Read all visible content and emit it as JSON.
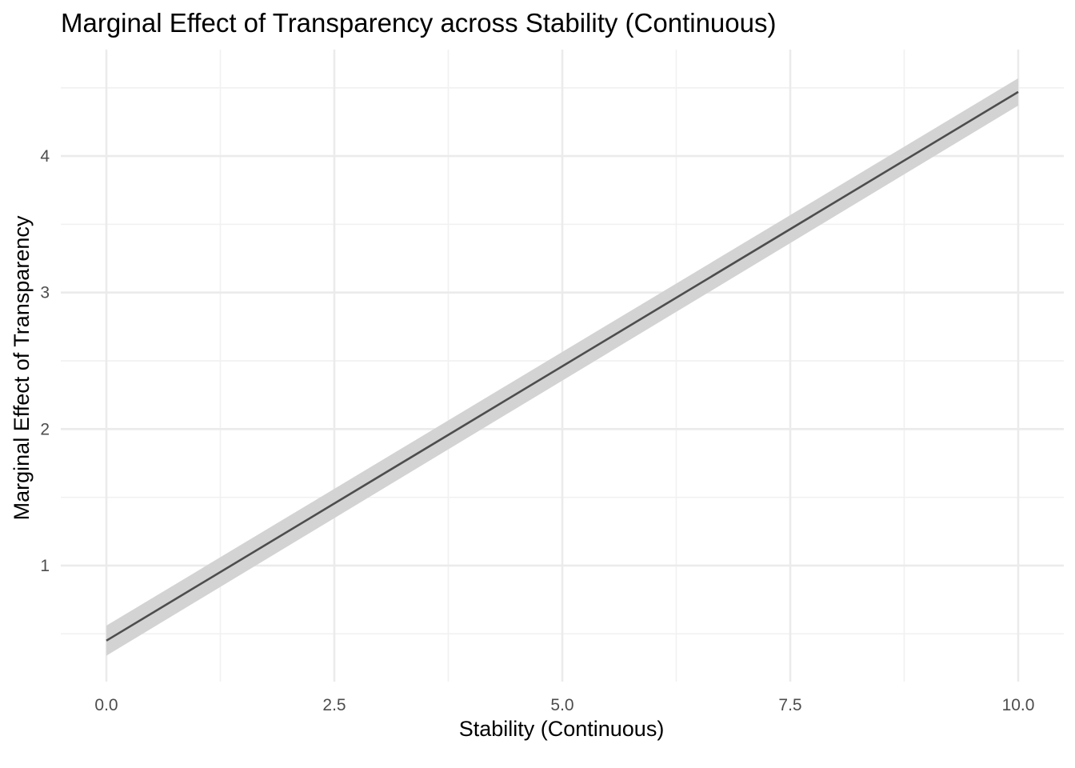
{
  "chart_data": {
    "type": "line",
    "title": "Marginal Effect of Transparency across Stability (Continuous)",
    "xlabel": "Stability (Continuous)",
    "ylabel": "Marginal Effect of Transparency",
    "xlim": [
      -0.5,
      10.5
    ],
    "ylim": [
      0.15,
      4.78
    ],
    "x_ticks": [
      0.0,
      2.5,
      5.0,
      7.5,
      10.0
    ],
    "x_tick_labels": [
      "0.0",
      "2.5",
      "5.0",
      "7.5",
      "10.0"
    ],
    "x_minor_ticks": [
      1.25,
      3.75,
      6.25,
      8.75
    ],
    "y_ticks": [
      1,
      2,
      3,
      4
    ],
    "y_tick_labels": [
      "1",
      "2",
      "3",
      "4"
    ],
    "y_minor_ticks": [
      0.5,
      1.5,
      2.5,
      3.5,
      4.5
    ],
    "grid": true,
    "legend": "none",
    "series": [
      {
        "x": [
          0.0,
          10.0
        ],
        "values": [
          0.45,
          4.47
        ],
        "ci_lower": [
          0.34,
          4.37
        ],
        "ci_upper": [
          0.56,
          4.57
        ],
        "line_color": "#4d4d4d",
        "band_color": "#d3d3d3"
      }
    ]
  }
}
